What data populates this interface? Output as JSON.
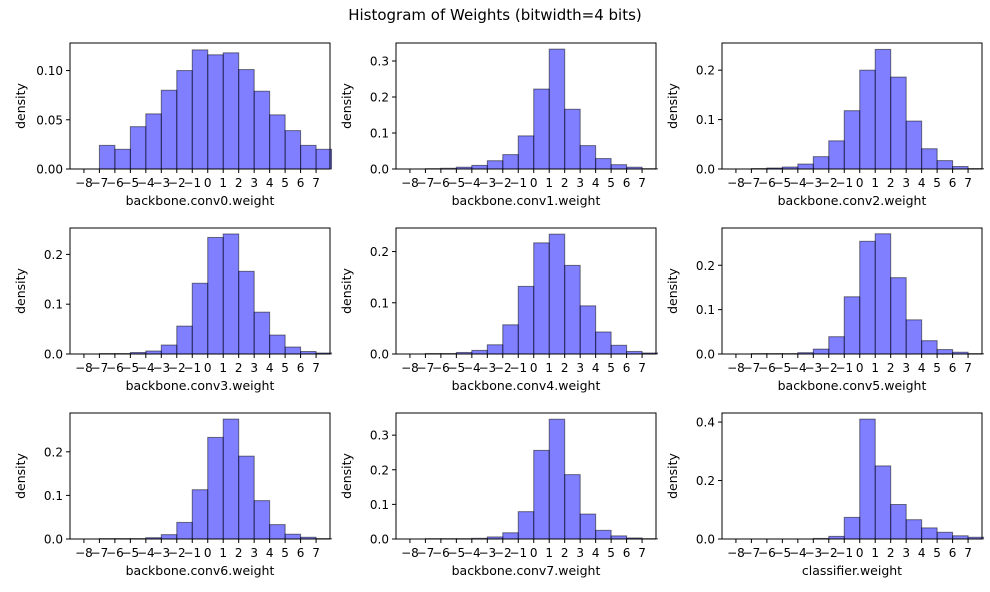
{
  "figure": {
    "title": "Histogram of Weights (bitwidth=4 bits)",
    "bar_color": "#0000ff",
    "bar_alpha": 0.5,
    "edge_color": "#000000"
  },
  "chart_data": [
    {
      "type": "bar",
      "title": "",
      "xlabel": "backbone.conv0.weight",
      "ylabel": "density",
      "categories": [
        "-8",
        "-7",
        "-6",
        "-5",
        "-4",
        "-3",
        "-2",
        "-1",
        "0",
        "1",
        "2",
        "3",
        "4",
        "5",
        "6",
        "7"
      ],
      "values": [
        0,
        0.024,
        0.02,
        0.043,
        0.056,
        0.08,
        0.1,
        0.121,
        0.116,
        0.118,
        0.101,
        0.079,
        0.055,
        0.039,
        0.024,
        0.02
      ],
      "yticks": [
        0.0,
        0.05,
        0.1
      ],
      "ytick_labels": [
        "0.00",
        "0.05",
        "0.10"
      ],
      "ylim": [
        0,
        0.128
      ],
      "grid": false
    },
    {
      "type": "bar",
      "title": "",
      "xlabel": "backbone.conv1.weight",
      "ylabel": "density",
      "categories": [
        "-8",
        "-7",
        "-6",
        "-5",
        "-4",
        "-3",
        "-2",
        "-1",
        "0",
        "1",
        "2",
        "3",
        "4",
        "5",
        "6",
        "7"
      ],
      "values": [
        0,
        0.001,
        0.002,
        0.005,
        0.01,
        0.023,
        0.04,
        0.092,
        0.222,
        0.333,
        0.166,
        0.065,
        0.029,
        0.012,
        0.005,
        0.001
      ],
      "yticks": [
        0.0,
        0.1,
        0.2,
        0.3
      ],
      "ytick_labels": [
        "0.0",
        "0.1",
        "0.2",
        "0.3"
      ],
      "ylim": [
        0,
        0.35
      ],
      "grid": false
    },
    {
      "type": "bar",
      "title": "",
      "xlabel": "backbone.conv2.weight",
      "ylabel": "density",
      "categories": [
        "-8",
        "-7",
        "-6",
        "-5",
        "-4",
        "-3",
        "-2",
        "-1",
        "0",
        "1",
        "2",
        "3",
        "4",
        "5",
        "6",
        "7"
      ],
      "values": [
        0,
        0.001,
        0.002,
        0.004,
        0.01,
        0.025,
        0.057,
        0.118,
        0.2,
        0.242,
        0.186,
        0.097,
        0.041,
        0.017,
        0.005,
        0.001
      ],
      "yticks": [
        0.0,
        0.1,
        0.2
      ],
      "ytick_labels": [
        "0.0",
        "0.1",
        "0.2"
      ],
      "ylim": [
        0,
        0.255
      ],
      "grid": false
    },
    {
      "type": "bar",
      "title": "",
      "xlabel": "backbone.conv3.weight",
      "ylabel": "density",
      "categories": [
        "-8",
        "-7",
        "-6",
        "-5",
        "-4",
        "-3",
        "-2",
        "-1",
        "0",
        "1",
        "2",
        "3",
        "4",
        "5",
        "6",
        "7"
      ],
      "values": [
        0,
        0.001,
        0.001,
        0.003,
        0.006,
        0.018,
        0.056,
        0.142,
        0.234,
        0.241,
        0.166,
        0.084,
        0.038,
        0.014,
        0.005,
        0.002
      ],
      "yticks": [
        0.0,
        0.1,
        0.2
      ],
      "ytick_labels": [
        "0.0",
        "0.1",
        "0.2"
      ],
      "ylim": [
        0,
        0.253
      ],
      "grid": false
    },
    {
      "type": "bar",
      "title": "",
      "xlabel": "backbone.conv4.weight",
      "ylabel": "density",
      "categories": [
        "-8",
        "-7",
        "-6",
        "-5",
        "-4",
        "-3",
        "-2",
        "-1",
        "0",
        "1",
        "2",
        "3",
        "4",
        "5",
        "6",
        "7"
      ],
      "values": [
        0,
        0.001,
        0.001,
        0.003,
        0.007,
        0.018,
        0.057,
        0.132,
        0.217,
        0.234,
        0.173,
        0.094,
        0.043,
        0.017,
        0.005,
        0.002
      ],
      "yticks": [
        0.0,
        0.1,
        0.2
      ],
      "ytick_labels": [
        "0.0",
        "0.1",
        "0.2"
      ],
      "ylim": [
        0,
        0.246
      ],
      "grid": false
    },
    {
      "type": "bar",
      "title": "",
      "xlabel": "backbone.conv5.weight",
      "ylabel": "density",
      "categories": [
        "-8",
        "-7",
        "-6",
        "-5",
        "-4",
        "-3",
        "-2",
        "-1",
        "0",
        "1",
        "2",
        "3",
        "4",
        "5",
        "6",
        "7"
      ],
      "values": [
        0,
        0.001,
        0.001,
        0.001,
        0.003,
        0.011,
        0.039,
        0.129,
        0.254,
        0.271,
        0.172,
        0.077,
        0.03,
        0.01,
        0.004,
        0.001
      ],
      "yticks": [
        0.0,
        0.1,
        0.2
      ],
      "ytick_labels": [
        "0.0",
        "0.1",
        "0.2"
      ],
      "ylim": [
        0,
        0.284
      ],
      "grid": false
    },
    {
      "type": "bar",
      "title": "",
      "xlabel": "backbone.conv6.weight",
      "ylabel": "density",
      "categories": [
        "-8",
        "-7",
        "-6",
        "-5",
        "-4",
        "-3",
        "-2",
        "-1",
        "0",
        "1",
        "2",
        "3",
        "4",
        "5",
        "6",
        "7"
      ],
      "values": [
        0,
        0.001,
        0.001,
        0.001,
        0.003,
        0.01,
        0.038,
        0.113,
        0.233,
        0.275,
        0.19,
        0.088,
        0.033,
        0.011,
        0.004,
        0.001
      ],
      "yticks": [
        0.0,
        0.1,
        0.2
      ],
      "ytick_labels": [
        "0.0",
        "0.1",
        "0.2"
      ],
      "ylim": [
        0,
        0.289
      ],
      "grid": false
    },
    {
      "type": "bar",
      "title": "",
      "xlabel": "backbone.conv7.weight",
      "ylabel": "density",
      "categories": [
        "-8",
        "-7",
        "-6",
        "-5",
        "-4",
        "-3",
        "-2",
        "-1",
        "0",
        "1",
        "2",
        "3",
        "4",
        "5",
        "6",
        "7"
      ],
      "values": [
        0,
        0.001,
        0.001,
        0.001,
        0.002,
        0.006,
        0.018,
        0.079,
        0.256,
        0.346,
        0.186,
        0.072,
        0.025,
        0.009,
        0.003,
        0.001
      ],
      "yticks": [
        0.0,
        0.1,
        0.2,
        0.3
      ],
      "ytick_labels": [
        "0.0",
        "0.1",
        "0.2",
        "0.3"
      ],
      "ylim": [
        0,
        0.364
      ],
      "grid": false
    },
    {
      "type": "bar",
      "title": "",
      "xlabel": "classifier.weight",
      "ylabel": "density",
      "categories": [
        "-8",
        "-7",
        "-6",
        "-5",
        "-4",
        "-3",
        "-2",
        "-1",
        "0",
        "1",
        "2",
        "3",
        "4",
        "5",
        "6",
        "7"
      ],
      "values": [
        0,
        0,
        0,
        0,
        0,
        0.002,
        0.009,
        0.074,
        0.41,
        0.25,
        0.118,
        0.066,
        0.038,
        0.023,
        0.011,
        0.006
      ],
      "yticks": [
        0.0,
        0.2,
        0.4
      ],
      "ytick_labels": [
        "0.0",
        "0.2",
        "0.4"
      ],
      "ylim": [
        0,
        0.431
      ],
      "grid": false
    }
  ]
}
